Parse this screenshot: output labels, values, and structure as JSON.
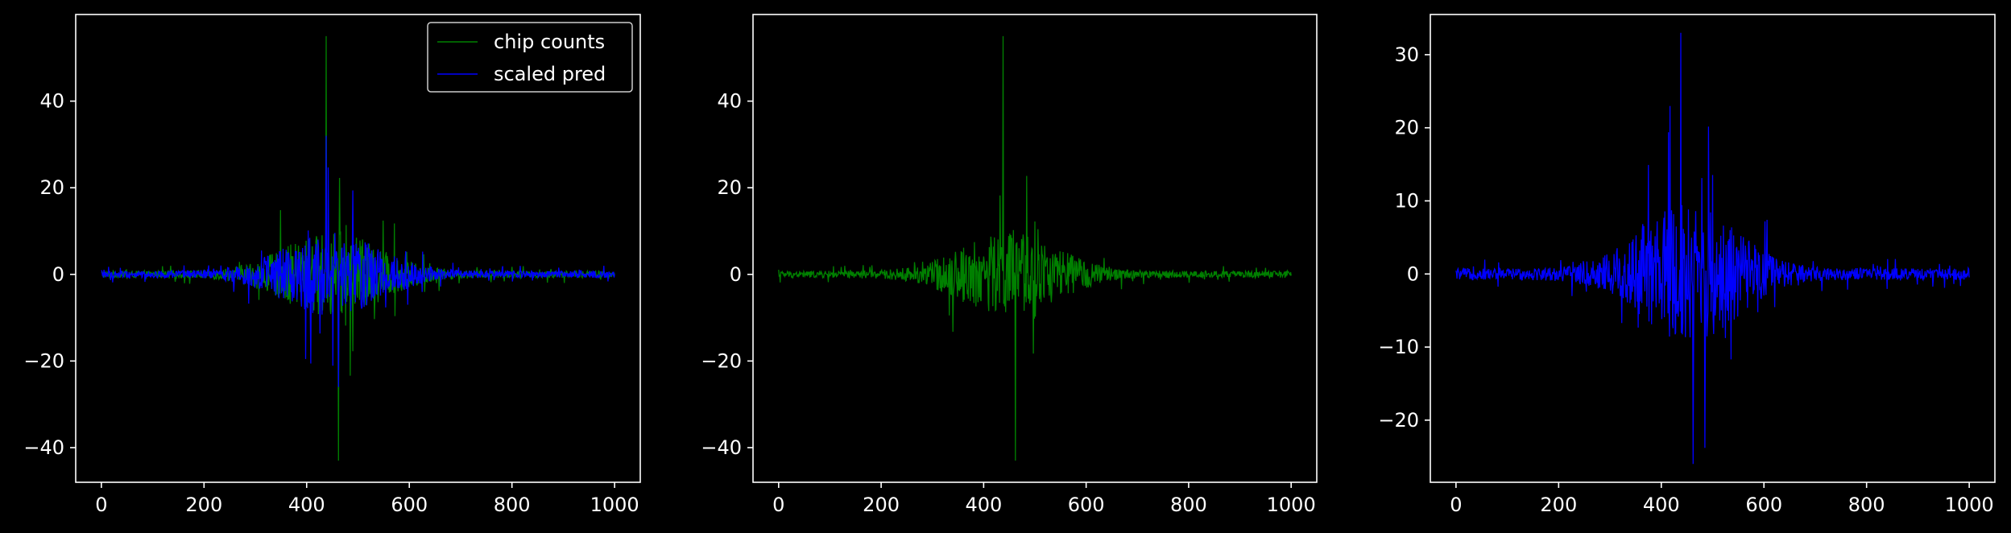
{
  "figure": {
    "background": "#000000",
    "foreground": "#ffffff"
  },
  "colors": {
    "green": "#008000",
    "blue": "#0000ff"
  },
  "chart_data": [
    {
      "type": "line",
      "title": "",
      "xlabel": "",
      "ylabel": "",
      "xlim": [
        -50,
        1050
      ],
      "ylim": [
        -48,
        60
      ],
      "xticks": [
        0,
        200,
        400,
        600,
        800,
        1000
      ],
      "yticks": [
        -40,
        -20,
        0,
        20,
        40
      ],
      "legend": {
        "placement": "top-right",
        "entries": [
          "chip counts",
          "scaled pred"
        ]
      },
      "grid": false,
      "series": [
        {
          "name": "chip counts",
          "color": "#008000",
          "style": "green",
          "x_range": [
            0,
            1000
          ],
          "peak_center": 450,
          "spread": 130,
          "max": 55,
          "min": -43
        },
        {
          "name": "scaled pred",
          "color": "#0000ff",
          "style": "blue",
          "x_range": [
            0,
            1000
          ],
          "peak_center": 450,
          "spread": 130,
          "max": 32,
          "min": -26
        }
      ]
    },
    {
      "type": "line",
      "title": "",
      "xlabel": "",
      "ylabel": "",
      "xlim": [
        -50,
        1050
      ],
      "ylim": [
        -48,
        60
      ],
      "xticks": [
        0,
        200,
        400,
        600,
        800,
        1000
      ],
      "yticks": [
        -40,
        -20,
        0,
        20,
        40
      ],
      "grid": false,
      "series": [
        {
          "color": "#008000",
          "style": "green",
          "x_range": [
            0,
            1000
          ],
          "peak_center": 450,
          "spread": 130,
          "max": 55,
          "min": -43
        }
      ]
    },
    {
      "type": "line",
      "title": "",
      "xlabel": "",
      "ylabel": "",
      "xlim": [
        -50,
        1050
      ],
      "ylim": [
        -28.5,
        35.5
      ],
      "xticks": [
        0,
        200,
        400,
        600,
        800,
        1000
      ],
      "yticks": [
        -20,
        -10,
        0,
        10,
        20,
        30
      ],
      "grid": false,
      "series": [
        {
          "color": "#0000ff",
          "style": "blue",
          "x_range": [
            0,
            1000
          ],
          "peak_center": 450,
          "spread": 130,
          "max": 33,
          "min": -26
        }
      ]
    }
  ]
}
